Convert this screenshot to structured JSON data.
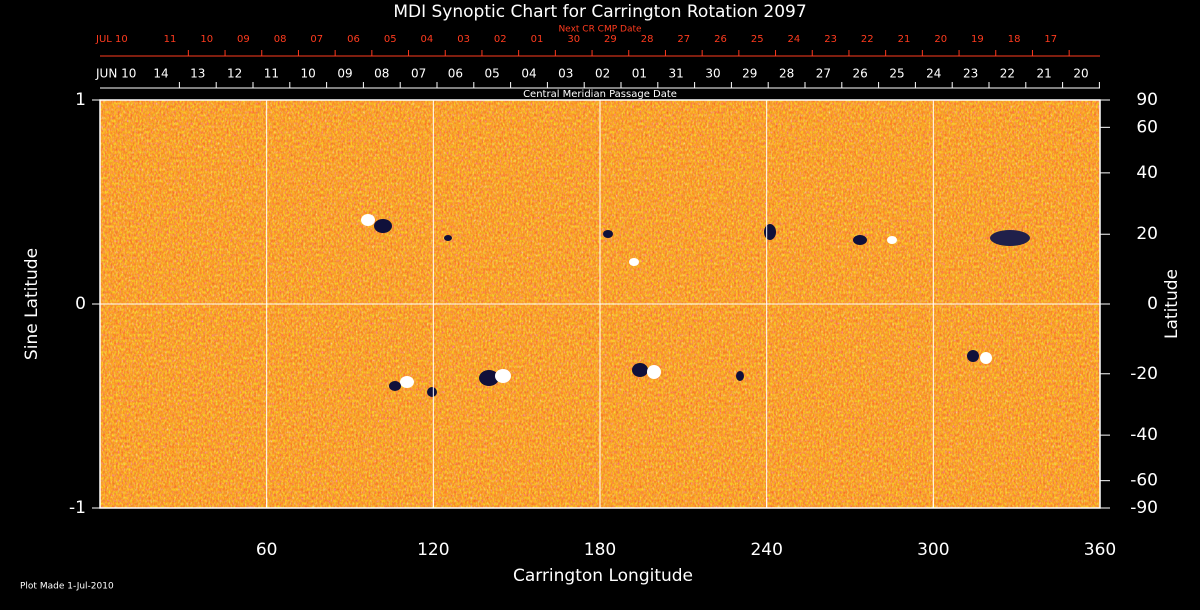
{
  "chart_data": {
    "type": "synoptic-map",
    "title": "MDI Synoptic Chart for Carrington Rotation 2097",
    "top_axis_title": "Next CR CMP Date",
    "top_labels": [
      "JUL 10",
      "11",
      "10",
      "09",
      "08",
      "07",
      "06",
      "05",
      "04",
      "03",
      "02",
      "01",
      "30",
      "29",
      "28",
      "27",
      "26",
      "25",
      "24",
      "23",
      "22",
      "21",
      "20",
      "19",
      "18",
      "17"
    ],
    "second_axis_title": "Central Meridian Passage Date",
    "second_labels": [
      "JUN 10",
      "14",
      "13",
      "12",
      "11",
      "10",
      "09",
      "08",
      "07",
      "06",
      "05",
      "04",
      "03",
      "02",
      "01",
      "31",
      "30",
      "29",
      "28",
      "27",
      "26",
      "25",
      "24",
      "23",
      "22",
      "21",
      "20"
    ],
    "xlabel": "Carrington Longitude",
    "ylabel": "Sine Latitude",
    "y2label": "Latitude",
    "xlim": [
      0,
      360
    ],
    "xticks": [
      60,
      120,
      180,
      240,
      300,
      360
    ],
    "ylim": [
      -1,
      1
    ],
    "yticks": [
      -1,
      0,
      1
    ],
    "y2lim": [
      -90,
      90
    ],
    "y2scale": "sine",
    "y2ticks": [
      90,
      60,
      40,
      20,
      0,
      -20,
      -40,
      -60,
      -90
    ],
    "footnote": "Plot Made  1-Jul-2010"
  }
}
